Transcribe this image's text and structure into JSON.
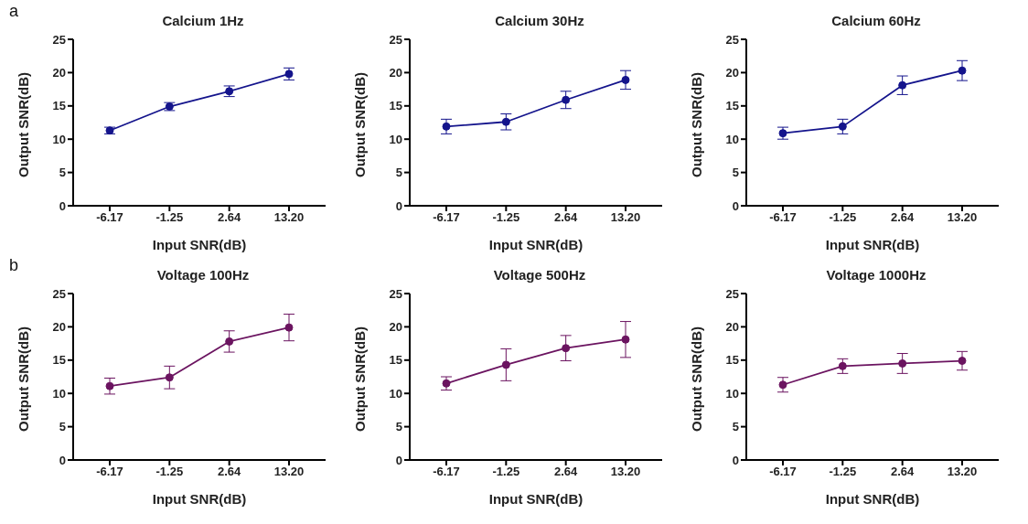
{
  "chart_data": [
    {
      "type": "line",
      "title": "Calcium 1Hz",
      "xlabel": "Input SNR(dB)",
      "ylabel": "Output SNR(dB)",
      "annotations": [
        "a"
      ],
      "categories": [
        "-6.17",
        "-1.25",
        "2.64",
        "13.20"
      ],
      "series": [
        {
          "color": "#14148c",
          "values": [
            11.3,
            14.9,
            17.2,
            19.8
          ],
          "errors": [
            0.5,
            0.6,
            0.8,
            0.9
          ]
        }
      ],
      "ylim": [
        0,
        25
      ],
      "yticks": [
        0,
        5,
        10,
        15,
        20,
        25
      ],
      "grid": false,
      "legend": false,
      "marker": "circle",
      "line_style": "solid"
    },
    {
      "type": "line",
      "title": "Calcium 30Hz",
      "xlabel": "Input SNR(dB)",
      "ylabel": "Output SNR(dB)",
      "categories": [
        "-6.17",
        "-1.25",
        "2.64",
        "13.20"
      ],
      "series": [
        {
          "color": "#14148c",
          "values": [
            11.9,
            12.6,
            15.9,
            18.9
          ],
          "errors": [
            1.1,
            1.2,
            1.3,
            1.4
          ]
        }
      ],
      "ylim": [
        0,
        25
      ],
      "yticks": [
        0,
        5,
        10,
        15,
        20,
        25
      ],
      "grid": false,
      "legend": false,
      "marker": "circle",
      "line_style": "solid"
    },
    {
      "type": "line",
      "title": "Calcium 60Hz",
      "xlabel": "Input SNR(dB)",
      "ylabel": "Output SNR(dB)",
      "categories": [
        "-6.17",
        "-1.25",
        "2.64",
        "13.20"
      ],
      "series": [
        {
          "color": "#14148c",
          "values": [
            10.9,
            11.9,
            18.1,
            20.3
          ],
          "errors": [
            0.9,
            1.1,
            1.4,
            1.5
          ]
        }
      ],
      "ylim": [
        0,
        25
      ],
      "yticks": [
        0,
        5,
        10,
        15,
        20,
        25
      ],
      "grid": false,
      "legend": false,
      "marker": "circle",
      "line_style": "solid"
    },
    {
      "type": "line",
      "title": "Voltage 100Hz",
      "xlabel": "Input SNR(dB)",
      "ylabel": "Output SNR(dB)",
      "annotations": [
        "b"
      ],
      "categories": [
        "-6.17",
        "-1.25",
        "2.64",
        "13.20"
      ],
      "series": [
        {
          "color": "#6b1460",
          "values": [
            11.1,
            12.4,
            17.8,
            19.9
          ],
          "errors": [
            1.2,
            1.7,
            1.6,
            2.0
          ]
        }
      ],
      "ylim": [
        0,
        25
      ],
      "yticks": [
        0,
        5,
        10,
        15,
        20,
        25
      ],
      "grid": false,
      "legend": false,
      "marker": "circle",
      "line_style": "solid"
    },
    {
      "type": "line",
      "title": "Voltage 500Hz",
      "xlabel": "Input SNR(dB)",
      "ylabel": "Output SNR(dB)",
      "categories": [
        "-6.17",
        "-1.25",
        "2.64",
        "13.20"
      ],
      "series": [
        {
          "color": "#6b1460",
          "values": [
            11.5,
            14.3,
            16.8,
            18.1
          ],
          "errors": [
            1.0,
            2.4,
            1.9,
            2.7
          ]
        }
      ],
      "ylim": [
        0,
        25
      ],
      "yticks": [
        0,
        5,
        10,
        15,
        20,
        25
      ],
      "grid": false,
      "legend": false,
      "marker": "circle",
      "line_style": "solid"
    },
    {
      "type": "line",
      "title": "Voltage 1000Hz",
      "xlabel": "Input SNR(dB)",
      "ylabel": "Output SNR(dB)",
      "categories": [
        "-6.17",
        "-1.25",
        "2.64",
        "13.20"
      ],
      "series": [
        {
          "color": "#6b1460",
          "values": [
            11.3,
            14.1,
            14.5,
            14.9
          ],
          "errors": [
            1.1,
            1.1,
            1.5,
            1.4
          ]
        }
      ],
      "ylim": [
        0,
        25
      ],
      "yticks": [
        0,
        5,
        10,
        15,
        20,
        25
      ],
      "grid": false,
      "legend": false,
      "marker": "circle",
      "line_style": "solid"
    }
  ]
}
